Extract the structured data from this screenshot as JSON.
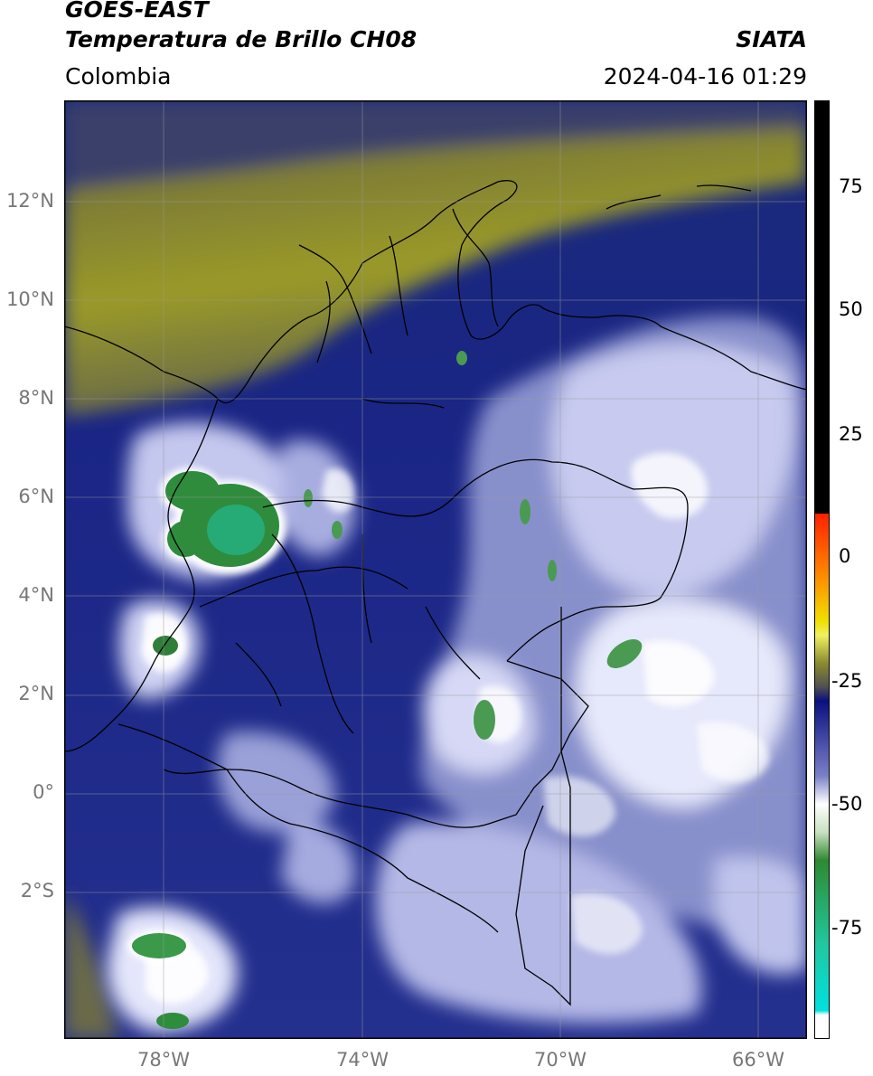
{
  "header": {
    "satellite": "GOES-EAST",
    "product": "Temperatura de Brillo CH08",
    "region": "Colombia",
    "organization": "SIATA",
    "timestamp": "2024-04-16 01:29"
  },
  "map": {
    "lat_labels": [
      "12°N",
      "10°N",
      "8°N",
      "6°N",
      "4°N",
      "2°N",
      "0°",
      "2°S"
    ],
    "lon_labels": [
      "78°W",
      "74°W",
      "70°W",
      "66°W"
    ],
    "extent": {
      "lon_min": -80,
      "lon_max": -65,
      "lat_min": -5,
      "lat_max": 14
    }
  },
  "colorbar": {
    "ticks": [
      "75",
      "50",
      "25",
      "0",
      "-25",
      "-50",
      "-75"
    ],
    "tick_values": [
      75,
      50,
      25,
      0,
      -25,
      -50,
      -75
    ],
    "range": [
      -95,
      90
    ],
    "colors": {
      "warm": "#000000",
      "hot": "#ff2000",
      "orange": "#ff9a00",
      "yellow": "#f0f000",
      "olive": "#8a8a30",
      "navy": "#0a1080",
      "lavender": "#b8bde8",
      "white": "#ffffff",
      "green": "#2e8a30",
      "teal": "#20c8a0",
      "cyan": "#00e0e0"
    }
  }
}
